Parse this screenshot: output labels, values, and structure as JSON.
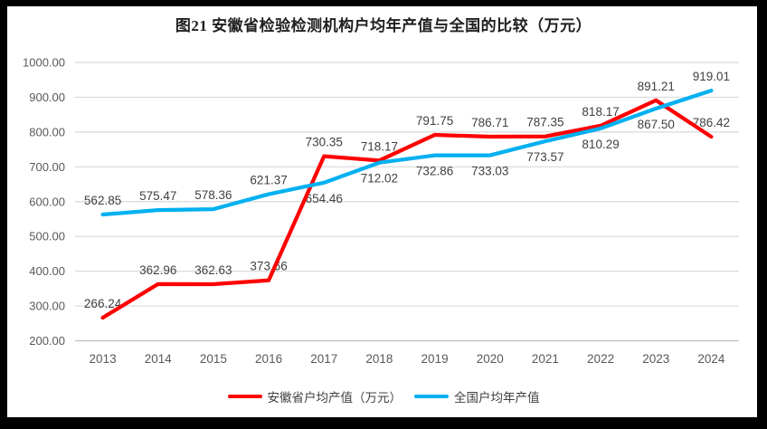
{
  "title": "图21 安徽省检验检测机构户均年产值与全国的比较（万元）",
  "colors": {
    "anhui_red": "#FF0000",
    "national_blue": "#00B0F0",
    "grid": "#D9D9D9",
    "axis": "#BFBFBF",
    "tick_text": "#595959",
    "data_label": "#404040",
    "title_text": "#1F1F1F",
    "frame": "#000000",
    "background": "#FFFFFF"
  },
  "chart_data": {
    "type": "line",
    "title": "图21 安徽省检验检测机构户均年产值与全国的比较（万元）",
    "categories": [
      "2013",
      "2014",
      "2015",
      "2016",
      "2017",
      "2018",
      "2019",
      "2020",
      "2021",
      "2022",
      "2023",
      "2024"
    ],
    "series": [
      {
        "id": "anhui",
        "name": "安徽省户均产值（万元）",
        "color": "#FF0000",
        "values": [
          266.24,
          362.96,
          362.63,
          373.66,
          730.35,
          718.17,
          791.75,
          786.71,
          787.35,
          818.17,
          891.21,
          786.42
        ],
        "label_sides": [
          "above",
          "above",
          "above",
          "above",
          "above",
          "above",
          "above",
          "above",
          "above",
          "above",
          "above",
          "above"
        ]
      },
      {
        "id": "national",
        "name": "全国户均年产值",
        "color": "#00B0F0",
        "values": [
          562.85,
          575.47,
          578.36,
          621.37,
          654.46,
          712.02,
          732.86,
          733.03,
          773.57,
          810.29,
          867.5,
          919.01
        ],
        "label_sides": [
          "above",
          "above",
          "above",
          "above",
          "below",
          "below",
          "below",
          "below",
          "below",
          "below",
          "below",
          "above"
        ]
      }
    ],
    "xlabel": "",
    "ylabel": "",
    "ylim": [
      200,
      1000
    ],
    "y_tick_step": 100,
    "y_ticks": [
      "1000.00",
      "900.00",
      "800.00",
      "700.00",
      "600.00",
      "500.00",
      "400.00",
      "300.00",
      "200.00"
    ],
    "grid": true,
    "legend_position": "bottom"
  }
}
